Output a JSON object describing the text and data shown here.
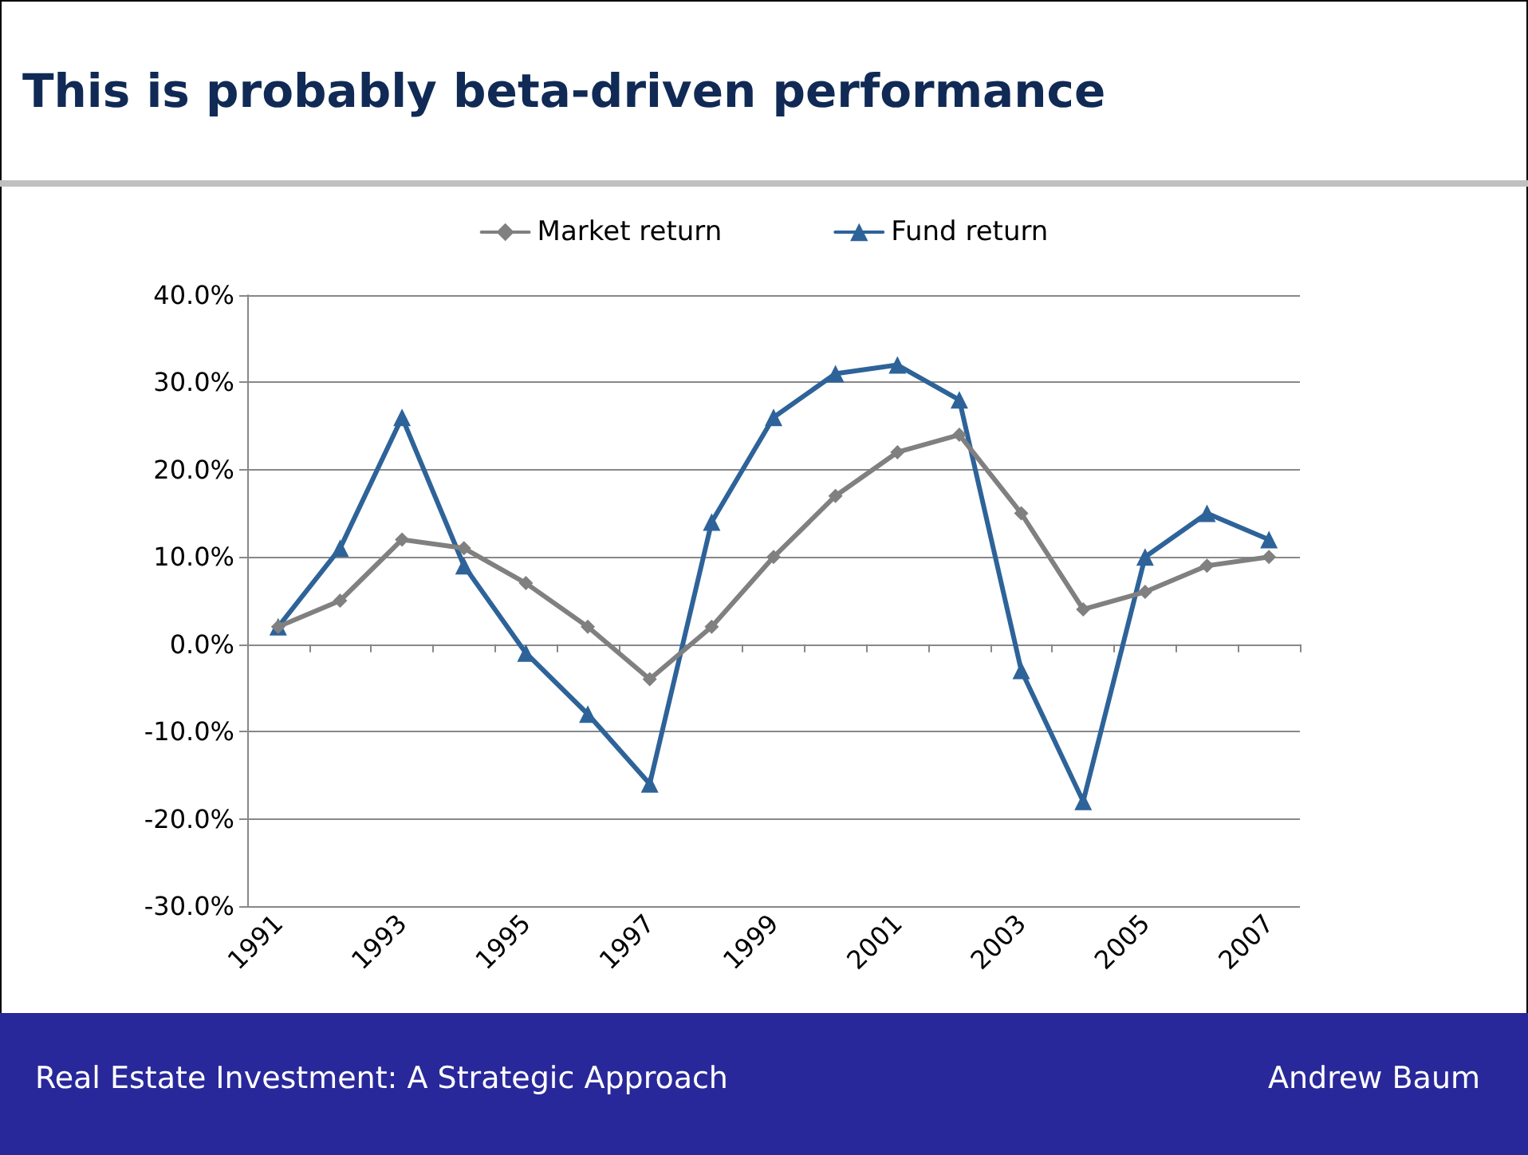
{
  "chart_data": {
    "type": "line",
    "title": "This is probably beta-driven performance",
    "categories": [
      "1991",
      null,
      "1993",
      null,
      "1995",
      null,
      "1997",
      null,
      "1999",
      null,
      "2001",
      null,
      "2003",
      null,
      "2005",
      null,
      "2007"
    ],
    "series": [
      {
        "name": "Market return",
        "color": "#808080",
        "marker": "diamond",
        "values": [
          2,
          5,
          12,
          11,
          7,
          2,
          -4,
          2,
          10,
          17,
          22,
          24,
          15,
          4,
          6,
          9,
          10
        ]
      },
      {
        "name": "Fund return",
        "color": "#2e6399",
        "marker": "triangle",
        "values": [
          2,
          11,
          26,
          9,
          -1,
          -8,
          -16,
          14,
          26,
          31,
          32,
          28,
          -3,
          -18,
          10,
          15,
          12
        ]
      }
    ],
    "ylim": [
      -30,
      40
    ],
    "yticks": [
      {
        "value": -30,
        "label": "-30.0%"
      },
      {
        "value": -20,
        "label": "-20.0%"
      },
      {
        "value": -10,
        "label": "-10.0%"
      },
      {
        "value": 0,
        "label": "0.0%"
      },
      {
        "value": 10,
        "label": "10.0%"
      },
      {
        "value": 20,
        "label": "20.0%"
      },
      {
        "value": 30,
        "label": "30.0%"
      },
      {
        "value": 40,
        "label": "40.0%"
      }
    ],
    "grid": "y",
    "legend": "top",
    "line_style": "solid",
    "annotations": [
      "Real Estate Investment: A Strategic Approach",
      "Andrew Baum"
    ]
  }
}
